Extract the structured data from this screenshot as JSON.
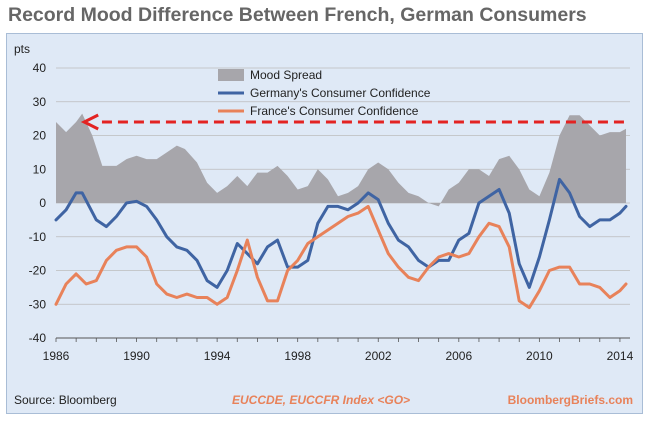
{
  "title": "Record Mood Difference Between French, German Consumers",
  "footer": {
    "source": "Source: Bloomberg",
    "index": "EUCCDE, EUCCFR Index <GO>",
    "brand": "BloombergBriefs.com"
  },
  "colors": {
    "germany": "#3f64a3",
    "france": "#e8825a",
    "spread": "#a7a6ab",
    "arrow": "#e32322",
    "panel": "#dfe9f6"
  },
  "chart_data": {
    "type": "area",
    "ylabel": "pts",
    "ylim": [
      -40,
      40
    ],
    "yticks": [
      "40",
      "30",
      "20",
      "10",
      "0",
      "-10",
      "-20",
      "-30",
      "-40"
    ],
    "xlim": [
      1986,
      2014.5
    ],
    "xticks": [
      "1986",
      "1990",
      "1994",
      "1998",
      "2002",
      "2006",
      "2010",
      "2014"
    ],
    "grid": "horizontal",
    "legend_position": "top-center",
    "series": [
      {
        "name": "Mood Spread",
        "style": "area",
        "x": [
          1986,
          1986.5,
          1987,
          1987.3,
          1987.8,
          1988.3,
          1989,
          1989.5,
          1990,
          1990.5,
          1991,
          1991.5,
          1992,
          1992.4,
          1993,
          1993.5,
          1994,
          1994.5,
          1995,
          1995.5,
          1996,
          1996.5,
          1997,
          1997.5,
          1998,
          1998.5,
          1999,
          1999.5,
          2000,
          2000.5,
          2001,
          2001.5,
          2002,
          2002.5,
          2003,
          2003.5,
          2004,
          2004.5,
          2005,
          2005.5,
          2006,
          2006.5,
          2007,
          2007.5,
          2008,
          2008.5,
          2009,
          2009.5,
          2010,
          2010.5,
          2011,
          2011.5,
          2012,
          2012.5,
          2013,
          2013.5,
          2014,
          2014.3
        ],
        "values": [
          24,
          21,
          24,
          26.5,
          20,
          11,
          11,
          13,
          14,
          13,
          13,
          15,
          17,
          16,
          12,
          6,
          3,
          5,
          8,
          5,
          9,
          9,
          11,
          8,
          4,
          5,
          10,
          7,
          2,
          3,
          5,
          10,
          12,
          10,
          6,
          3,
          2,
          0,
          -1,
          4,
          6,
          10,
          10,
          8,
          13,
          14,
          10,
          4,
          2,
          9,
          20,
          26,
          26,
          23,
          20,
          21,
          21,
          22
        ]
      },
      {
        "name": "Germany's Consumer Confidence",
        "style": "line",
        "x": [
          1986,
          1986.5,
          1987,
          1987.3,
          1988,
          1988.5,
          1989,
          1989.5,
          1990,
          1990.5,
          1991,
          1991.5,
          1992,
          1992.5,
          1993,
          1993.5,
          1994,
          1994.5,
          1995,
          1995.5,
          1996,
          1996.5,
          1997,
          1997.5,
          1998,
          1998.5,
          1999,
          1999.5,
          2000,
          2000.5,
          2001,
          2001.5,
          2002,
          2002.5,
          2003,
          2003.5,
          2004,
          2004.5,
          2005,
          2005.5,
          2006,
          2006.5,
          2007,
          2007.5,
          2008,
          2008.5,
          2009,
          2009.5,
          2010,
          2010.5,
          2011,
          2011.5,
          2012,
          2012.5,
          2013,
          2013.5,
          2014,
          2014.3
        ],
        "values": [
          -5,
          -2,
          3,
          3,
          -5,
          -7,
          -4,
          0,
          0.5,
          -1,
          -5,
          -10,
          -13,
          -14,
          -17,
          -23,
          -25,
          -20,
          -12,
          -15,
          -18,
          -13,
          -11,
          -19,
          -19,
          -17,
          -6,
          -1,
          -1,
          -2,
          0,
          3,
          1,
          -6,
          -11,
          -13,
          -17,
          -19,
          -17,
          -17,
          -11,
          -9,
          0,
          2,
          4,
          -3,
          -18,
          -25,
          -16,
          -5,
          7,
          3,
          -4,
          -7,
          -5,
          -5,
          -3,
          -1
        ]
      },
      {
        "name": "France's Consumer Confidence",
        "style": "line",
        "x": [
          1986,
          1986.5,
          1987,
          1987.5,
          1988,
          1988.5,
          1989,
          1989.5,
          1990,
          1990.5,
          1991,
          1991.5,
          1992,
          1992.5,
          1993,
          1993.5,
          1994,
          1994.5,
          1995,
          1995.5,
          1996,
          1996.5,
          1997,
          1997.5,
          1998,
          1998.5,
          1999,
          1999.5,
          2000,
          2000.5,
          2001,
          2001.5,
          2002,
          2002.5,
          2003,
          2003.5,
          2004,
          2004.5,
          2005,
          2005.5,
          2006,
          2006.5,
          2007,
          2007.5,
          2008,
          2008.5,
          2009,
          2009.5,
          2010,
          2010.5,
          2011,
          2011.5,
          2012,
          2012.5,
          2013,
          2013.5,
          2014,
          2014.3
        ],
        "values": [
          -30,
          -24,
          -21,
          -24,
          -23,
          -17,
          -14,
          -13,
          -13,
          -16,
          -24,
          -27,
          -28,
          -27,
          -28,
          -28,
          -30,
          -28,
          -20,
          -11,
          -22,
          -29,
          -29,
          -20,
          -17,
          -12,
          -10,
          -8,
          -6,
          -4,
          -3,
          -1,
          -8,
          -15,
          -19,
          -22,
          -23,
          -19,
          -16,
          -15,
          -16,
          -15,
          -10,
          -6,
          -7,
          -13,
          -29,
          -31,
          -26,
          -20,
          -19,
          -19,
          -24,
          -24,
          -25,
          -28,
          -26,
          -24
        ]
      }
    ],
    "annotation": {
      "type": "dashed-arrow",
      "y": 24,
      "x_from": 2014.2,
      "x_to": 1987.4
    }
  }
}
